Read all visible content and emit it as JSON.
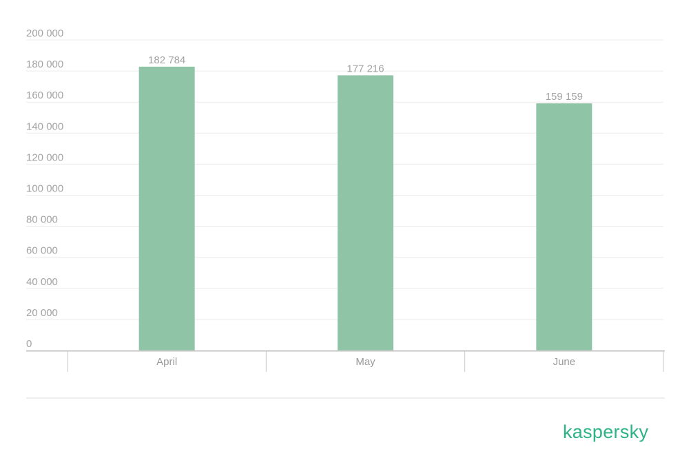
{
  "chart_data": {
    "type": "bar",
    "categories": [
      "April",
      "May",
      "June"
    ],
    "values": [
      182784,
      177216,
      159159
    ],
    "value_labels": [
      "182 784",
      "177 216",
      "159 159"
    ],
    "yticks": [
      0,
      20000,
      40000,
      60000,
      80000,
      100000,
      120000,
      140000,
      160000,
      180000,
      200000
    ],
    "ytick_labels": [
      "0",
      "20 000",
      "40 000",
      "60 000",
      "80 000",
      "100 000",
      "120 000",
      "140 000",
      "160 000",
      "180 000",
      "200 000"
    ],
    "ylim": [
      0,
      200000
    ],
    "grid": true,
    "colors": {
      "bar": "#8fc4a6",
      "grid": "#ececec",
      "axis": "#c8c8c8",
      "text": "#a3a3a3"
    }
  },
  "brand": {
    "logo_text": "kaspersky",
    "color": "#2eb386"
  }
}
